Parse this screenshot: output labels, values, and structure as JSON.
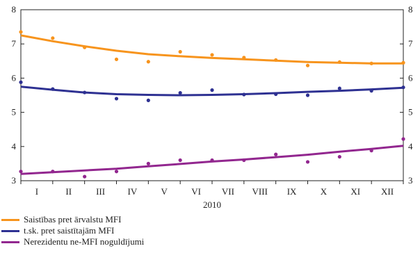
{
  "chart_data": {
    "type": "scatter",
    "title": "",
    "xlabel": "2010",
    "ylabel": "",
    "ylim": [
      3,
      8
    ],
    "yticks": [
      3,
      4,
      5,
      6,
      7,
      8
    ],
    "categories": [
      "I",
      "II",
      "III",
      "IV",
      "V",
      "VI",
      "VII",
      "VIII",
      "IX",
      "X",
      "XI",
      "XII"
    ],
    "x": [
      0.5,
      1.5,
      2.5,
      3.5,
      4.5,
      5.5,
      6.5,
      7.5,
      8.5,
      9.5,
      10.5,
      11.5
    ],
    "grid": false,
    "legend_position": "bottom-left",
    "series": [
      {
        "name": "Saistības pret ārvalstu MFI",
        "color": "#f7941d",
        "points": [
          [
            0,
            7.35
          ],
          [
            1,
            7.17
          ],
          [
            2,
            6.9
          ],
          [
            3,
            6.55
          ],
          [
            4,
            6.48
          ],
          [
            5,
            6.77
          ],
          [
            6,
            6.68
          ],
          [
            7,
            6.6
          ],
          [
            8,
            6.53
          ],
          [
            9,
            6.37
          ],
          [
            10,
            6.47
          ],
          [
            11,
            6.43
          ],
          [
            12,
            6.45
          ]
        ],
        "trend": [
          [
            0,
            7.25
          ],
          [
            1,
            7.08
          ],
          [
            2,
            6.93
          ],
          [
            3,
            6.8
          ],
          [
            4,
            6.7
          ],
          [
            5,
            6.64
          ],
          [
            6,
            6.59
          ],
          [
            7,
            6.55
          ],
          [
            8,
            6.51
          ],
          [
            9,
            6.47
          ],
          [
            10,
            6.45
          ],
          [
            11,
            6.43
          ],
          [
            12,
            6.43
          ]
        ]
      },
      {
        "name": "t.sk. pret saistītajām MFI",
        "color": "#2e3192",
        "points": [
          [
            0,
            5.88
          ],
          [
            1,
            5.68
          ],
          [
            2,
            5.58
          ],
          [
            3,
            5.4
          ],
          [
            4,
            5.35
          ],
          [
            5,
            5.57
          ],
          [
            6,
            5.65
          ],
          [
            7,
            5.52
          ],
          [
            8,
            5.53
          ],
          [
            9,
            5.5
          ],
          [
            10,
            5.7
          ],
          [
            11,
            5.63
          ],
          [
            12,
            5.73
          ]
        ],
        "trend": [
          [
            0,
            5.75
          ],
          [
            1,
            5.66
          ],
          [
            2,
            5.58
          ],
          [
            3,
            5.53
          ],
          [
            4,
            5.51
          ],
          [
            5,
            5.5
          ],
          [
            6,
            5.51
          ],
          [
            7,
            5.53
          ],
          [
            8,
            5.56
          ],
          [
            9,
            5.6
          ],
          [
            10,
            5.63
          ],
          [
            11,
            5.67
          ],
          [
            12,
            5.72
          ]
        ]
      },
      {
        "name": "Nerezidentu ne-MFI noguldījumi",
        "color": "#92278f",
        "points": [
          [
            0,
            3.27
          ],
          [
            1,
            3.27
          ],
          [
            2,
            3.12
          ],
          [
            3,
            3.27
          ],
          [
            4,
            3.5
          ],
          [
            5,
            3.6
          ],
          [
            6,
            3.6
          ],
          [
            7,
            3.6
          ],
          [
            8,
            3.77
          ],
          [
            9,
            3.55
          ],
          [
            10,
            3.7
          ],
          [
            11,
            3.88
          ],
          [
            12,
            4.22
          ]
        ],
        "trend": [
          [
            0,
            3.2
          ],
          [
            1,
            3.25
          ],
          [
            2,
            3.3
          ],
          [
            3,
            3.35
          ],
          [
            4,
            3.42
          ],
          [
            5,
            3.49
          ],
          [
            6,
            3.56
          ],
          [
            7,
            3.62
          ],
          [
            8,
            3.69
          ],
          [
            9,
            3.76
          ],
          [
            10,
            3.85
          ],
          [
            11,
            3.93
          ],
          [
            12,
            4.02
          ]
        ]
      }
    ]
  }
}
